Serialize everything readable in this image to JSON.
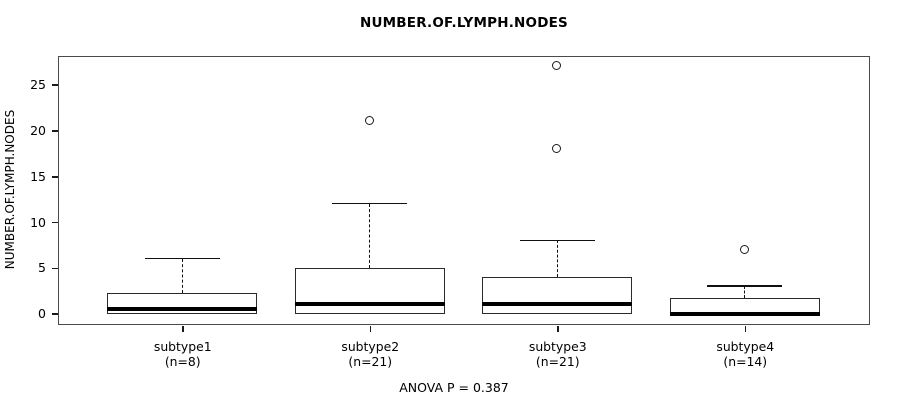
{
  "chart_data": {
    "type": "boxplot",
    "title": "NUMBER.OF.LYMPH.NODES",
    "ylabel": "NUMBER.OF.LYMPH.NODES",
    "xlabel": "",
    "annotation": "ANOVA P = 0.387",
    "ylim": [
      0,
      27
    ],
    "yticks": [
      0,
      5,
      10,
      15,
      20,
      25
    ],
    "grid": false,
    "legend": "none",
    "groups": [
      {
        "label": "subtype1",
        "sublabel": "(n=8)",
        "n": 8,
        "whisker_low": 0,
        "q1": 0,
        "median": 0.5,
        "q3": 2.25,
        "whisker_high": 6,
        "outliers": []
      },
      {
        "label": "subtype2",
        "sublabel": "(n=21)",
        "n": 21,
        "whisker_low": 0,
        "q1": 0,
        "median": 1,
        "q3": 5,
        "whisker_high": 12,
        "outliers": [
          21
        ]
      },
      {
        "label": "subtype3",
        "sublabel": "(n=21)",
        "n": 21,
        "whisker_low": 0,
        "q1": 0,
        "median": 1,
        "q3": 4,
        "whisker_high": 8,
        "outliers": [
          18,
          27
        ]
      },
      {
        "label": "subtype4",
        "sublabel": "(n=14)",
        "n": 14,
        "whisker_low": 0,
        "q1": 0,
        "median": 0,
        "q3": 1.75,
        "whisker_high": 3,
        "outliers": [
          7
        ]
      }
    ],
    "colors": {
      "background": "#ffffff",
      "box_fill": "#ffffff",
      "line": "#000000",
      "frame": "#4a4a4a"
    }
  }
}
